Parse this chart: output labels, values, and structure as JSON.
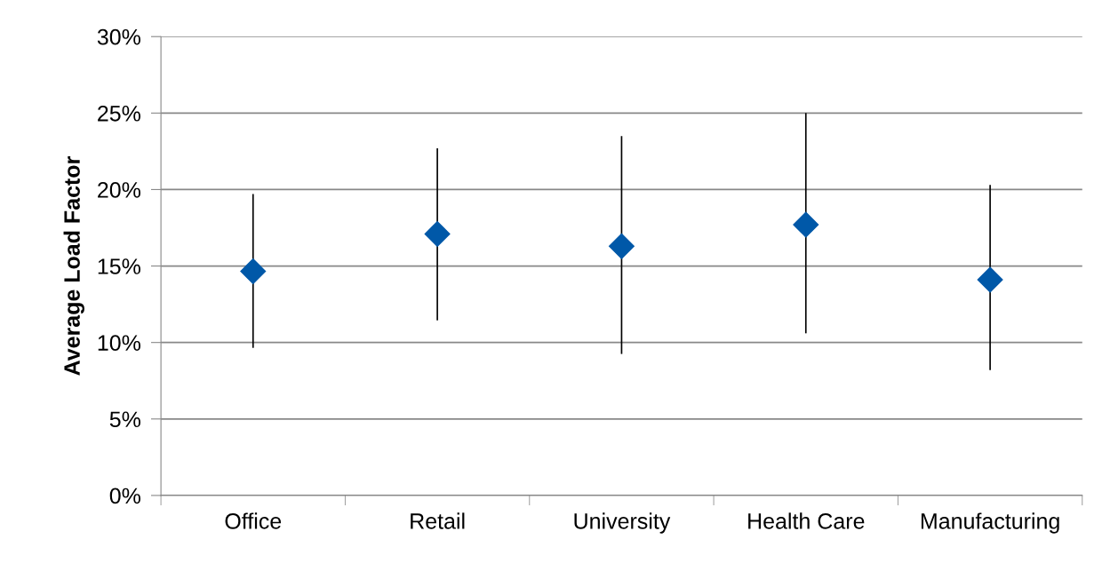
{
  "chart_data": {
    "type": "scatter",
    "ylabel": "Average Load Factor",
    "categories": [
      "Office",
      "Retail",
      "University",
      "Health Care",
      "Manufacturing"
    ],
    "series": [
      {
        "color": "#0058a8",
        "values": [
          14.65,
          17.1,
          16.3,
          17.7,
          14.1
        ],
        "errors": [
          [
            9.65,
            19.7
          ],
          [
            11.45,
            22.7
          ],
          [
            9.25,
            23.5
          ],
          [
            10.6,
            25.0
          ],
          [
            8.2,
            20.3
          ]
        ]
      }
    ],
    "ylim": [
      0,
      30
    ],
    "yticks": [
      {
        "value": 0,
        "label": "0%"
      },
      {
        "value": 5,
        "label": "5%"
      },
      {
        "value": 10,
        "label": "10%"
      },
      {
        "value": 15,
        "label": "15%"
      },
      {
        "value": 20,
        "label": "20%"
      },
      {
        "value": 25,
        "label": "25%"
      },
      {
        "value": 30,
        "label": "30%"
      }
    ],
    "grid": "y",
    "marker": "diamond",
    "legend": false
  }
}
